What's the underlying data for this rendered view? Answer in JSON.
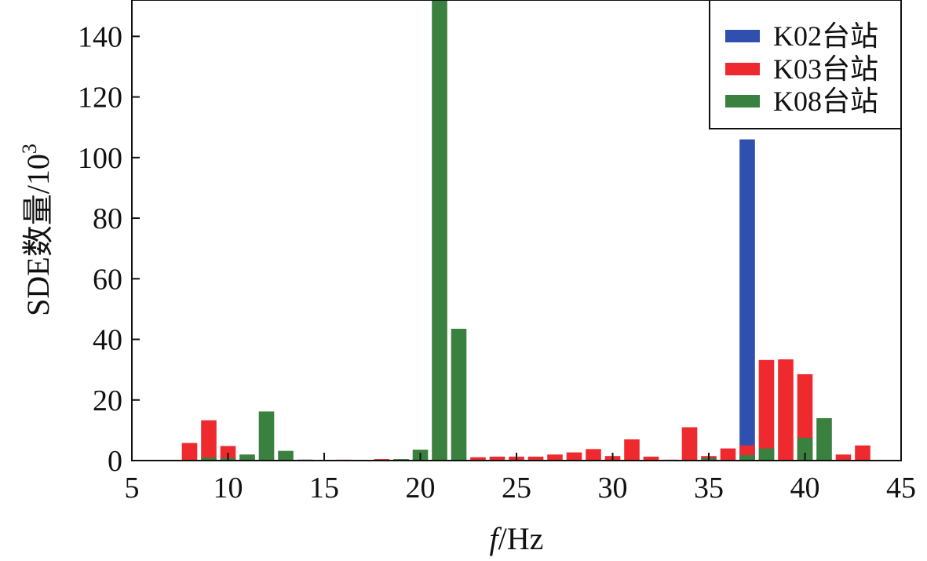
{
  "chart_data": {
    "type": "bar",
    "xlabel_italic": "f",
    "xlabel_rest": "/Hz",
    "ylabel_main": "SDE数量/10",
    "ylabel_sup": "3",
    "xlim": [
      5,
      45
    ],
    "ylim": [
      0,
      152
    ],
    "xticks": [
      5,
      10,
      15,
      20,
      25,
      30,
      35,
      40,
      45
    ],
    "yticks": [
      0,
      20,
      40,
      60,
      80,
      100,
      120,
      140
    ],
    "grid": false,
    "legend_position": "top-right",
    "series": [
      {
        "name": "K02台站",
        "color": "#3050b0",
        "points": [
          [
            37,
            106
          ]
        ]
      },
      {
        "name": "K03台站",
        "color": "#ee2a2f",
        "points": [
          [
            8,
            5.8
          ],
          [
            9,
            13.3
          ],
          [
            10,
            4.8
          ],
          [
            11,
            0.8
          ],
          [
            12,
            0.4
          ],
          [
            14,
            0.3
          ],
          [
            16,
            0.3
          ],
          [
            18,
            0.5
          ],
          [
            19,
            0.3
          ],
          [
            23,
            1.1
          ],
          [
            24,
            1.3
          ],
          [
            25,
            1.3
          ],
          [
            26,
            1.3
          ],
          [
            27,
            2.0
          ],
          [
            28,
            2.7
          ],
          [
            29,
            3.8
          ],
          [
            30,
            1.5
          ],
          [
            31,
            7.0
          ],
          [
            32,
            1.3
          ],
          [
            33,
            0.3
          ],
          [
            34,
            11.0
          ],
          [
            35,
            1.5
          ],
          [
            36,
            4.0
          ],
          [
            37,
            5.0
          ],
          [
            38,
            33.2
          ],
          [
            39,
            33.4
          ],
          [
            40,
            28.5
          ],
          [
            41,
            0.5
          ],
          [
            42,
            2.0
          ],
          [
            43,
            5.0
          ]
        ]
      },
      {
        "name": "K08台站",
        "color": "#3a803f",
        "points": [
          [
            9,
            1.0
          ],
          [
            10,
            0.8
          ],
          [
            11,
            2.0
          ],
          [
            12,
            16.2
          ],
          [
            13,
            3.2
          ],
          [
            14,
            0.3
          ],
          [
            19,
            0.5
          ],
          [
            20,
            3.6
          ],
          [
            21,
            152
          ],
          [
            22,
            43.5
          ],
          [
            35,
            0.8
          ],
          [
            37,
            1.8
          ],
          [
            38,
            4.0
          ],
          [
            40,
            7.5
          ],
          [
            41,
            14.0
          ]
        ]
      }
    ]
  }
}
